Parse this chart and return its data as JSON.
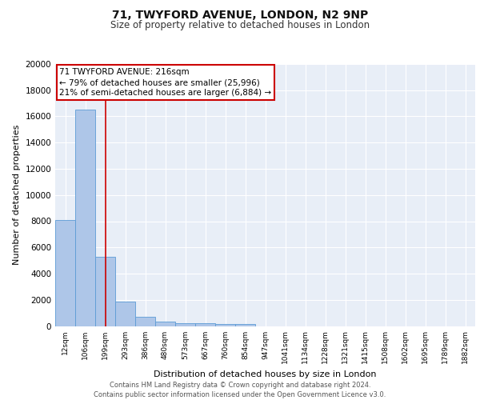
{
  "title1": "71, TWYFORD AVENUE, LONDON, N2 9NP",
  "title2": "Size of property relative to detached houses in London",
  "xlabel": "Distribution of detached houses by size in London",
  "ylabel": "Number of detached properties",
  "categories": [
    "12sqm",
    "106sqm",
    "199sqm",
    "293sqm",
    "386sqm",
    "480sqm",
    "573sqm",
    "667sqm",
    "760sqm",
    "854sqm",
    "947sqm",
    "1041sqm",
    "1134sqm",
    "1228sqm",
    "1321sqm",
    "1415sqm",
    "1508sqm",
    "1602sqm",
    "1695sqm",
    "1789sqm",
    "1882sqm"
  ],
  "values": [
    8100,
    16500,
    5300,
    1850,
    700,
    320,
    220,
    200,
    160,
    130,
    0,
    0,
    0,
    0,
    0,
    0,
    0,
    0,
    0,
    0,
    0
  ],
  "bar_color": "#aec6e8",
  "bar_edge_color": "#5b9bd5",
  "bg_color": "#e8eef7",
  "grid_color": "#ffffff",
  "annotation_text": "71 TWYFORD AVENUE: 216sqm\n← 79% of detached houses are smaller (25,996)\n21% of semi-detached houses are larger (6,884) →",
  "redline_x": 2.0,
  "annotation_box_color": "#ffffff",
  "annotation_box_edge": "#cc0000",
  "footer": "Contains HM Land Registry data © Crown copyright and database right 2024.\nContains public sector information licensed under the Open Government Licence v3.0.",
  "ylim": [
    0,
    20000
  ],
  "yticks": [
    0,
    2000,
    4000,
    6000,
    8000,
    10000,
    12000,
    14000,
    16000,
    18000,
    20000
  ]
}
